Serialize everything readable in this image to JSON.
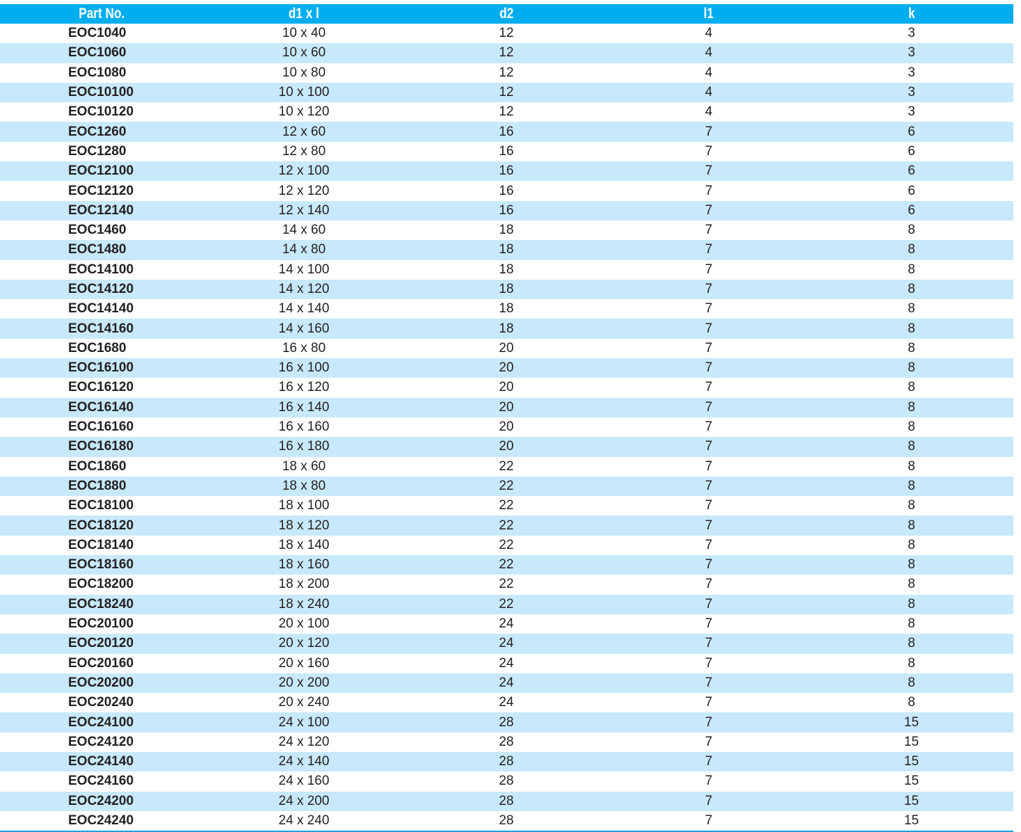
{
  "table": {
    "headers": [
      "Part No.",
      "d1 x l",
      "d2",
      "l1",
      "k"
    ],
    "rows": [
      [
        "EOC1040",
        "10 x 40",
        "12",
        "4",
        "3"
      ],
      [
        "EOC1060",
        "10 x 60",
        "12",
        "4",
        "3"
      ],
      [
        "EOC1080",
        "10 x 80",
        "12",
        "4",
        "3"
      ],
      [
        "EOC10100",
        "10 x 100",
        "12",
        "4",
        "3"
      ],
      [
        "EOC10120",
        "10 x 120",
        "12",
        "4",
        "3"
      ],
      [
        "EOC1260",
        "12 x 60",
        "16",
        "7",
        "6"
      ],
      [
        "EOC1280",
        "12 x 80",
        "16",
        "7",
        "6"
      ],
      [
        "EOC12100",
        "12 x 100",
        "16",
        "7",
        "6"
      ],
      [
        "EOC12120",
        "12 x 120",
        "16",
        "7",
        "6"
      ],
      [
        "EOC12140",
        "12 x 140",
        "16",
        "7",
        "6"
      ],
      [
        "EOC1460",
        "14 x 60",
        "18",
        "7",
        "8"
      ],
      [
        "EOC1480",
        "14 x 80",
        "18",
        "7",
        "8"
      ],
      [
        "EOC14100",
        "14 x 100",
        "18",
        "7",
        "8"
      ],
      [
        "EOC14120",
        "14 x 120",
        "18",
        "7",
        "8"
      ],
      [
        "EOC14140",
        "14 x 140",
        "18",
        "7",
        "8"
      ],
      [
        "EOC14160",
        "14 x 160",
        "18",
        "7",
        "8"
      ],
      [
        "EOC1680",
        "16 x 80",
        "20",
        "7",
        "8"
      ],
      [
        "EOC16100",
        "16 x 100",
        "20",
        "7",
        "8"
      ],
      [
        "EOC16120",
        "16 x 120",
        "20",
        "7",
        "8"
      ],
      [
        "EOC16140",
        "16 x 140",
        "20",
        "7",
        "8"
      ],
      [
        "EOC16160",
        "16 x 160",
        "20",
        "7",
        "8"
      ],
      [
        "EOC16180",
        "16 x 180",
        "20",
        "7",
        "8"
      ],
      [
        "EOC1860",
        "18 x 60",
        "22",
        "7",
        "8"
      ],
      [
        "EOC1880",
        "18 x 80",
        "22",
        "7",
        "8"
      ],
      [
        "EOC18100",
        "18 x 100",
        "22",
        "7",
        "8"
      ],
      [
        "EOC18120",
        "18 x 120",
        "22",
        "7",
        "8"
      ],
      [
        "EOC18140",
        "18 x 140",
        "22",
        "7",
        "8"
      ],
      [
        "EOC18160",
        "18 x 160",
        "22",
        "7",
        "8"
      ],
      [
        "EOC18200",
        "18 x 200",
        "22",
        "7",
        "8"
      ],
      [
        "EOC18240",
        "18 x 240",
        "22",
        "7",
        "8"
      ],
      [
        "EOC20100",
        "20 x 100",
        "24",
        "7",
        "8"
      ],
      [
        "EOC20120",
        "20 x 120",
        "24",
        "7",
        "8"
      ],
      [
        "EOC20160",
        "20 x 160",
        "24",
        "7",
        "8"
      ],
      [
        "EOC20200",
        "20 x 200",
        "24",
        "7",
        "8"
      ],
      [
        "EOC20240",
        "20 x 240",
        "24",
        "7",
        "8"
      ],
      [
        "EOC24100",
        "24 x 100",
        "28",
        "7",
        "15"
      ],
      [
        "EOC24120",
        "24 x 120",
        "28",
        "7",
        "15"
      ],
      [
        "EOC24140",
        "24 x 140",
        "28",
        "7",
        "15"
      ],
      [
        "EOC24160",
        "24 x 160",
        "28",
        "7",
        "15"
      ],
      [
        "EOC24200",
        "24 x 200",
        "28",
        "7",
        "15"
      ],
      [
        "EOC24240",
        "24 x 240",
        "28",
        "7",
        "15"
      ]
    ]
  },
  "colors": {
    "header_bg": "#00aeef",
    "stripe": "#c7e9fb"
  }
}
